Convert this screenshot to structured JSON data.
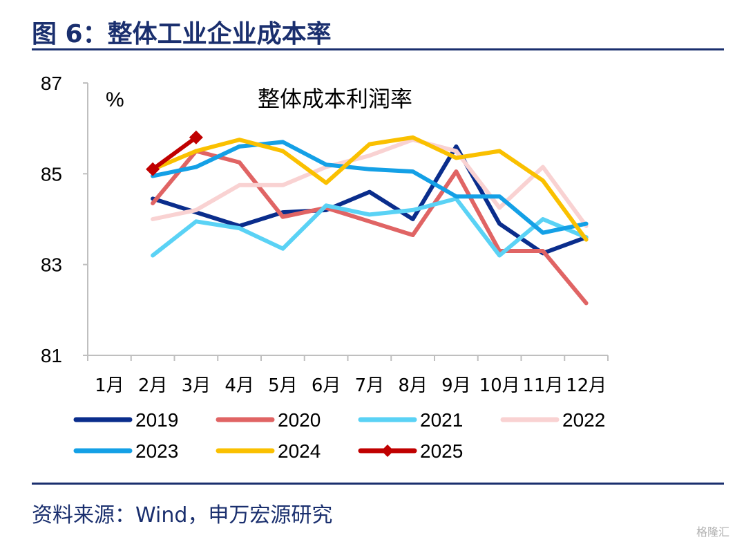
{
  "figure": {
    "title": "图 6：整体工业企业成本率",
    "source": "资料来源：Wind，申万宏源研究",
    "watermark": "格隆汇"
  },
  "chart_data": {
    "type": "line",
    "title": "整体成本利润率",
    "ylabel": "%",
    "xlabel": "",
    "ylim": [
      81,
      87
    ],
    "yticks": [
      81,
      83,
      85,
      87
    ],
    "categories": [
      "1月",
      "2月",
      "3月",
      "4月",
      "5月",
      "6月",
      "7月",
      "8月",
      "9月",
      "10月",
      "11月",
      "12月"
    ],
    "grid": false,
    "legend_position": "bottom",
    "series": [
      {
        "name": "2019",
        "color": "#0a2d8c",
        "values": [
          null,
          84.45,
          84.15,
          83.85,
          84.15,
          84.2,
          84.6,
          84.0,
          85.6,
          83.9,
          83.25,
          83.6
        ]
      },
      {
        "name": "2020",
        "color": "#e06464",
        "values": [
          null,
          84.35,
          85.5,
          85.25,
          84.05,
          84.25,
          83.95,
          83.65,
          85.05,
          83.3,
          83.3,
          82.15
        ]
      },
      {
        "name": "2021",
        "color": "#5ad2f5",
        "values": [
          null,
          83.2,
          83.95,
          83.8,
          83.35,
          84.3,
          84.1,
          84.2,
          84.45,
          83.2,
          84.0,
          83.6
        ]
      },
      {
        "name": "2022",
        "color": "#f9d2d2",
        "values": [
          null,
          84.0,
          84.2,
          84.75,
          84.75,
          85.15,
          85.4,
          85.75,
          85.5,
          84.25,
          85.15,
          83.85
        ]
      },
      {
        "name": "2023",
        "color": "#14a0e6",
        "values": [
          null,
          84.95,
          85.15,
          85.6,
          85.7,
          85.2,
          85.1,
          85.05,
          84.5,
          84.5,
          83.7,
          83.9
        ]
      },
      {
        "name": "2024",
        "color": "#fac000",
        "values": [
          null,
          85.1,
          85.5,
          85.75,
          85.5,
          84.8,
          85.65,
          85.8,
          85.35,
          85.5,
          84.85,
          83.55
        ]
      },
      {
        "name": "2025",
        "color": "#c00000",
        "marker": "diamond",
        "values": [
          null,
          85.1,
          85.8,
          null,
          null,
          null,
          null,
          null,
          null,
          null,
          null,
          null
        ]
      }
    ]
  }
}
